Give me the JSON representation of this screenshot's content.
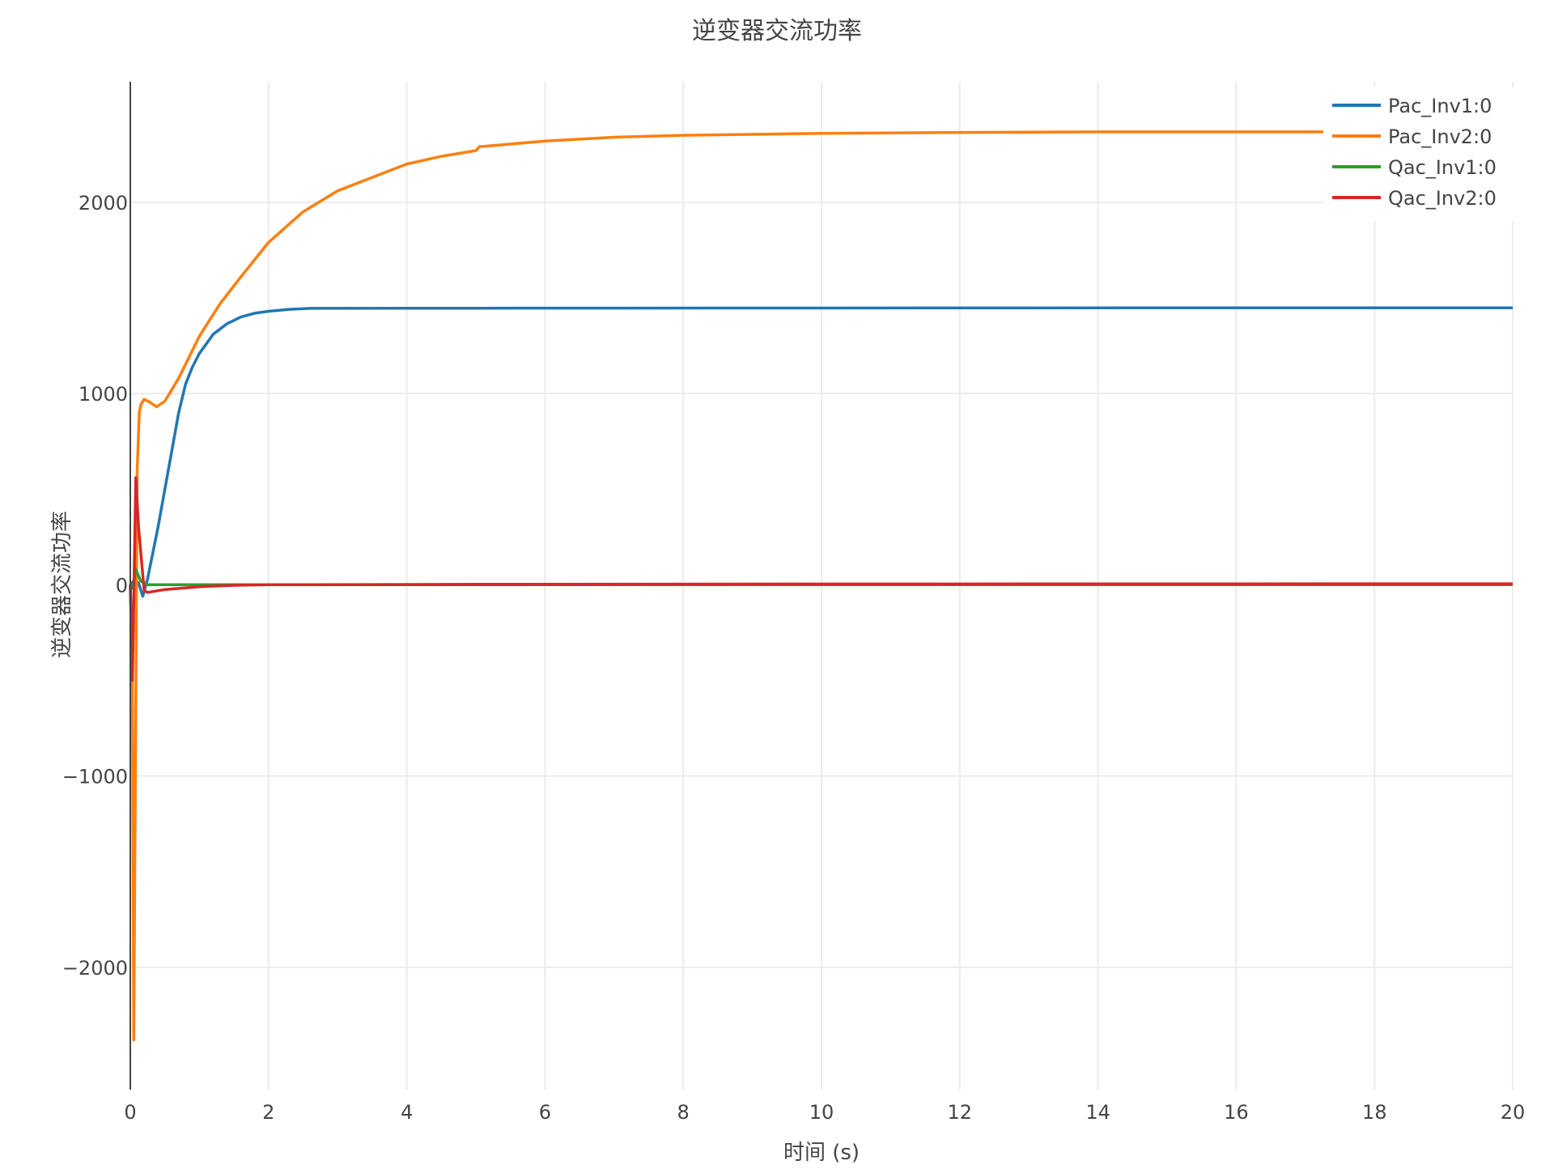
{
  "chart_data": {
    "type": "line",
    "title": "逆变器交流功率",
    "xlabel": "时间 (s)",
    "ylabel": "逆变器交流功率",
    "xlim": [
      0,
      20
    ],
    "ylim": [
      -2640,
      2630
    ],
    "xticks": [
      0,
      2,
      4,
      6,
      8,
      10,
      12,
      14,
      16,
      18,
      20
    ],
    "yticks": [
      -2000,
      -1000,
      0,
      1000,
      2000
    ],
    "ytick_labels": [
      "−2000",
      "−1000",
      "0",
      "1000",
      "2000"
    ],
    "grid": true,
    "legend_position": "top-right",
    "series": [
      {
        "name": "Pac_Inv1:0",
        "color": "#1f77b4",
        "x": [
          0,
          0.05,
          0.12,
          0.18,
          0.25,
          0.4,
          0.55,
          0.7,
          0.8,
          0.9,
          1.0,
          1.2,
          1.4,
          1.6,
          1.8,
          2.0,
          2.3,
          2.6,
          5,
          10,
          15,
          20
        ],
        "y": [
          0,
          20,
          10,
          -60,
          30,
          300,
          600,
          900,
          1050,
          1140,
          1210,
          1310,
          1365,
          1400,
          1420,
          1430,
          1440,
          1445,
          1446,
          1447,
          1448,
          1448
        ]
      },
      {
        "name": "Pac_Inv2:0",
        "color": "#ff7f0e",
        "x": [
          0,
          0.03,
          0.05,
          0.08,
          0.1,
          0.13,
          0.15,
          0.2,
          0.28,
          0.38,
          0.5,
          0.7,
          1.0,
          1.3,
          1.6,
          2.0,
          2.5,
          3.0,
          3.5,
          4.0,
          4.5,
          5.0,
          5.05,
          6,
          7,
          8,
          10,
          12,
          14,
          17,
          20
        ],
        "y": [
          0,
          -500,
          -2380,
          -600,
          600,
          900,
          940,
          970,
          955,
          930,
          960,
          1080,
          1300,
          1470,
          1610,
          1790,
          1950,
          2060,
          2130,
          2200,
          2240,
          2270,
          2290,
          2320,
          2340,
          2350,
          2360,
          2365,
          2368,
          2368,
          2368
        ]
      },
      {
        "name": "Qac_Inv1:0",
        "color": "#2ca02c",
        "x": [
          0,
          0.04,
          0.08,
          0.15,
          0.25,
          0.5,
          1,
          20
        ],
        "y": [
          0,
          -20,
          80,
          20,
          0,
          0,
          0,
          0
        ]
      },
      {
        "name": "Qac_Inv2:0",
        "color": "#d62728",
        "x": [
          0,
          0.03,
          0.08,
          0.12,
          0.2,
          0.25,
          0.5,
          1.0,
          1.5,
          2.0,
          5,
          10,
          20
        ],
        "y": [
          0,
          -500,
          560,
          300,
          -30,
          -40,
          -25,
          -10,
          -3,
          0,
          2,
          4,
          5
        ]
      }
    ]
  }
}
